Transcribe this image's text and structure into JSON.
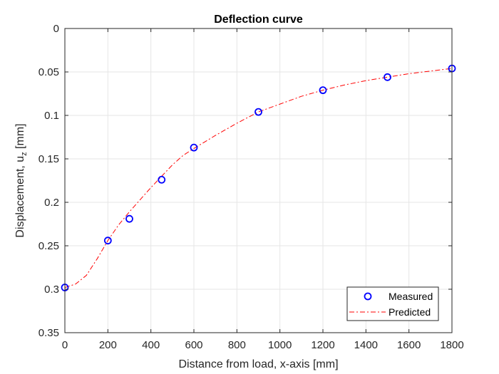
{
  "chart_data": {
    "type": "line",
    "title": "Deflection curve",
    "xlabel": "Distance from load, x-axis [mm]",
    "ylabel": {
      "main": "Displacement, u",
      "subscript": "z",
      "unit": " [mm]"
    },
    "xlim": [
      0,
      1800
    ],
    "ylim": [
      0,
      0.35
    ],
    "y_reversed": true,
    "grid": true,
    "legend_position": "bottom-right",
    "x_ticks": [
      0,
      200,
      400,
      600,
      800,
      1000,
      1200,
      1400,
      1600,
      1800
    ],
    "x_tick_labels": [
      "0",
      "200",
      "400",
      "600",
      "800",
      "1000",
      "1200",
      "1400",
      "1600",
      "1800"
    ],
    "y_ticks": [
      0,
      0.05,
      0.1,
      0.15,
      0.2,
      0.25,
      0.3,
      0.35
    ],
    "y_tick_labels": [
      "0",
      "0.05",
      "0.1",
      "0.15",
      "0.2",
      "0.25",
      "0.3",
      "0.35"
    ],
    "series": [
      {
        "name": "Measured",
        "kind": "scatter",
        "marker": "circle-open",
        "color": "#0000ff",
        "x": [
          0,
          200,
          300,
          450,
          600,
          900,
          1200,
          1500,
          1800
        ],
        "y": [
          0.298,
          0.244,
          0.219,
          0.174,
          0.137,
          0.096,
          0.071,
          0.056,
          0.046
        ]
      },
      {
        "name": "Predicted",
        "kind": "line",
        "line_style": "dash-dot",
        "color": "#ff0000",
        "x": [
          0,
          50,
          100,
          150,
          200,
          250,
          300,
          350,
          400,
          450,
          500,
          550,
          600,
          700,
          800,
          900,
          1000,
          1100,
          1200,
          1300,
          1400,
          1500,
          1600,
          1700,
          1800
        ],
        "y": [
          0.298,
          0.294,
          0.284,
          0.265,
          0.244,
          0.226,
          0.211,
          0.197,
          0.183,
          0.17,
          0.157,
          0.146,
          0.138,
          0.123,
          0.109,
          0.096,
          0.087,
          0.078,
          0.071,
          0.065,
          0.06,
          0.056,
          0.052,
          0.049,
          0.046
        ]
      }
    ]
  }
}
